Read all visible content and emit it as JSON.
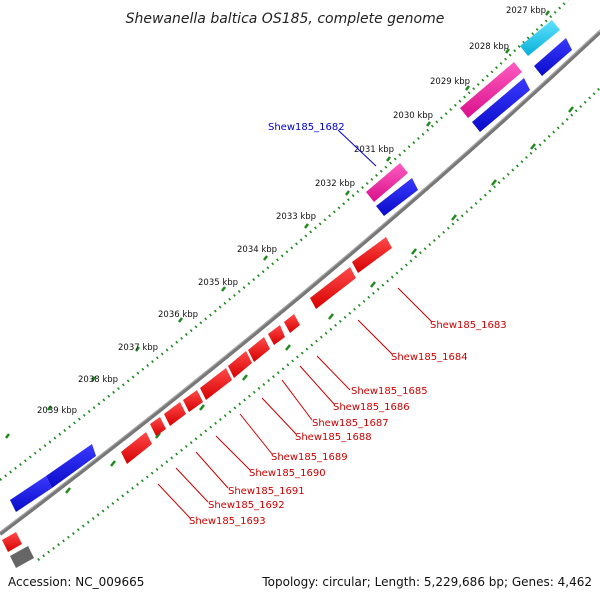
{
  "title": "Shewanella baltica OS185, complete genome",
  "footer": {
    "accession": "Accession: NC_009665",
    "topology": "Topology: circular; Length: 5,229,686 bp; Genes: 4,462"
  },
  "colors": {
    "backbone": "#777777",
    "tick_green": "#1f8a1f",
    "gene_red": "#ee0000",
    "gene_blue": "#1010dd",
    "gene_pink": "#ee1c9c",
    "gene_cyan": "#11c5e8",
    "gene_gray": "#666666"
  },
  "kbp_labels": [
    "2027 kbp",
    "2028 kbp",
    "2029 kbp",
    "2030 kbp",
    "2031 kbp",
    "2032 kbp",
    "2033 kbp",
    "2034 kbp",
    "2035 kbp",
    "2036 kbp",
    "2037 kbp",
    "2038 kbp",
    "2039 kbp"
  ],
  "gene_labels": [
    {
      "text": "Shew185_1682",
      "color": "blue"
    },
    {
      "text": "Shew185_1683",
      "color": "red"
    },
    {
      "text": "Shew185_1684",
      "color": "red"
    },
    {
      "text": "Shew185_1685",
      "color": "red"
    },
    {
      "text": "Shew185_1686",
      "color": "red"
    },
    {
      "text": "Shew185_1687",
      "color": "red"
    },
    {
      "text": "Shew185_1688",
      "color": "red"
    },
    {
      "text": "Shew185_1689",
      "color": "red"
    },
    {
      "text": "Shew185_1690",
      "color": "red"
    },
    {
      "text": "Shew185_1691",
      "color": "red"
    },
    {
      "text": "Shew185_1692",
      "color": "red"
    },
    {
      "text": "Shew185_1693",
      "color": "red"
    }
  ]
}
